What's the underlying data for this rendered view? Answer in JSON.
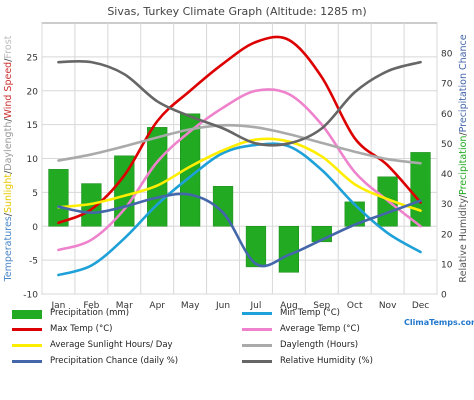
{
  "chart_data": {
    "type": "bar",
    "title": "Sivas, Turkey Climate Graph (Altitude: 1285 m)",
    "categories": [
      "Jan",
      "Feb",
      "Mar",
      "Apr",
      "May",
      "Jun",
      "Jul",
      "Aug",
      "Sep",
      "Oct",
      "Nov",
      "Dec"
    ],
    "ylabel_left_parts": [
      {
        "text": "Temperatures",
        "color": "#4a86c8"
      },
      {
        "text": "/",
        "color": "#444444"
      },
      {
        "text": "Sunlight",
        "color": "#e6c800"
      },
      {
        "text": "/",
        "color": "#444444"
      },
      {
        "text": "Daylength",
        "color": "#999999"
      },
      {
        "text": "/",
        "color": "#444444"
      },
      {
        "text": "Wind Speed",
        "color": "#cc3333"
      },
      {
        "text": "/",
        "color": "#444444"
      },
      {
        "text": "Frost",
        "color": "#bbbbbb"
      }
    ],
    "ylabel_right_parts": [
      {
        "text": "Relative Humidity",
        "color": "#555555"
      },
      {
        "text": "/",
        "color": "#444444"
      },
      {
        "text": "Precipitation",
        "color": "#22aa22"
      },
      {
        "text": "/",
        "color": "#444444"
      },
      {
        "text": "Precipitation Chance",
        "color": "#4466aa"
      }
    ],
    "ylim_left": [
      -10,
      30
    ],
    "left_ticks": [
      -10,
      -5,
      0,
      5,
      10,
      15,
      20,
      25
    ],
    "left_tick_labels": [
      "-10",
      "-5",
      "0",
      "5",
      "10",
      "15",
      "20",
      "25"
    ],
    "ylim_right": [
      0,
      90
    ],
    "right_ticks": [
      0,
      10,
      20,
      30,
      40,
      50,
      60,
      70,
      80
    ],
    "right_tick_labels": [
      "0",
      "10",
      "20",
      "30",
      "40",
      "50",
      "60",
      "70",
      "80"
    ],
    "grid": true,
    "bars": {
      "name": "Precipitation (mm)",
      "color": "#22aa22",
      "axis": "left",
      "values": [
        8.4,
        6.3,
        10.4,
        14.6,
        16.6,
        5.9,
        -6.0,
        -6.8,
        -2.3,
        3.6,
        7.3,
        10.9
      ]
    },
    "series": [
      {
        "name": "Min Temp (°C)",
        "color": "#1ea0d8",
        "axis": "left",
        "values": [
          -7.2,
          -5.8,
          -1.8,
          3.2,
          7.3,
          10.8,
          12.0,
          11.8,
          8.3,
          3.2,
          -1.0,
          -3.8
        ]
      },
      {
        "name": "Max Temp (°C)",
        "color": "#dd0000",
        "axis": "left",
        "values": [
          0.5,
          2.5,
          7.5,
          15.5,
          20.0,
          24.0,
          27.2,
          27.5,
          22.0,
          13.0,
          9.0,
          3.5
        ]
      },
      {
        "name": "Average Temp (°C)",
        "color": "#ee82cc",
        "axis": "left",
        "values": [
          -3.5,
          -2.0,
          2.5,
          9.5,
          14.0,
          17.5,
          20.0,
          19.5,
          15.0,
          8.0,
          3.8,
          0.0
        ]
      },
      {
        "name": "Average Sunlight Hours/ Day",
        "color": "#ffee00",
        "axis": "left",
        "values": [
          2.8,
          3.3,
          4.5,
          6.0,
          8.8,
          11.2,
          12.8,
          12.5,
          10.3,
          6.2,
          4.0,
          2.3
        ]
      },
      {
        "name": "Daylength (Hours)",
        "color": "#aaaaaa",
        "axis": "left",
        "values": [
          9.7,
          10.6,
          11.8,
          13.1,
          14.3,
          14.9,
          14.6,
          13.6,
          12.3,
          11.0,
          9.9,
          9.3
        ]
      },
      {
        "name": "Precipitation Chance (daily %)",
        "color": "#4466aa",
        "axis": "right",
        "values": [
          29,
          27,
          29,
          32,
          33,
          27,
          10,
          13,
          18,
          23,
          27,
          31
        ]
      },
      {
        "name": "Relative Humidity (%)",
        "color": "#666666",
        "axis": "right",
        "values": [
          77,
          77,
          73,
          64,
          59,
          55,
          50,
          50,
          55,
          67,
          74,
          77
        ]
      }
    ],
    "legend": {
      "placement": "bottom",
      "items": [
        {
          "label": "Precipitation (mm)",
          "color": "#22aa22",
          "kind": "box"
        },
        {
          "label": "Min Temp (°C)",
          "color": "#1ea0d8",
          "kind": "line"
        },
        {
          "label": "Max Temp (°C)",
          "color": "#dd0000",
          "kind": "line"
        },
        {
          "label": "Average Temp (°C)",
          "color": "#ee82cc",
          "kind": "line"
        },
        {
          "label": "Average Sunlight Hours/ Day",
          "color": "#ffee00",
          "kind": "line"
        },
        {
          "label": "Daylength (Hours)",
          "color": "#aaaaaa",
          "kind": "line"
        },
        {
          "label": "Precipitation Chance (daily %)",
          "color": "#4466aa",
          "kind": "line"
        },
        {
          "label": "Relative Humidity (%)",
          "color": "#666666",
          "kind": "line"
        }
      ]
    },
    "source": "ClimaTemps.com"
  }
}
